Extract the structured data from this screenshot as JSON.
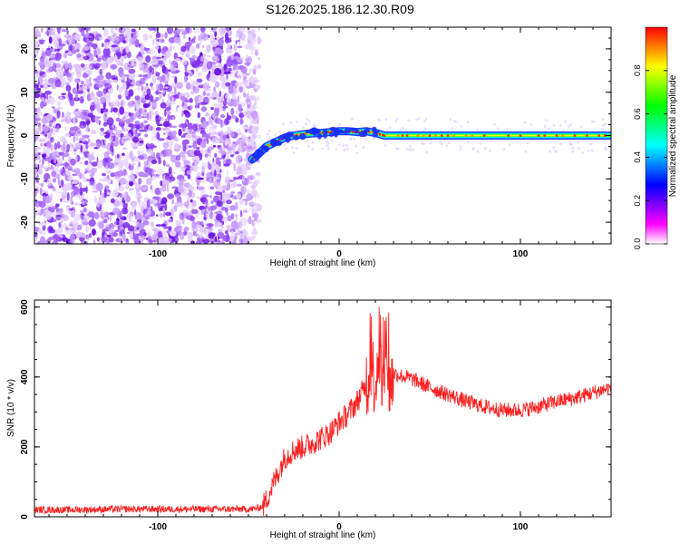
{
  "title": "S126.2025.186.12.30.R09",
  "chart_data": [
    {
      "type": "heatmap",
      "xlabel": "Height of straight line (km)",
      "ylabel": "Frequency (Hz)",
      "xlim": [
        -168,
        150
      ],
      "ylim": [
        -25,
        25
      ],
      "xticks": [
        -100,
        0,
        100
      ],
      "yticks": [
        -20,
        -10,
        0,
        10,
        20
      ],
      "colorbar": {
        "label": "Normalized spectral amplitude",
        "range": [
          0.0,
          1.0
        ],
        "ticks": [
          "0.0",
          "0.2",
          "0.4",
          "0.6",
          "0.8"
        ],
        "colormap": [
          "#ffffff",
          "#ff00ff",
          "#7f00ff",
          "#0000ff",
          "#0080ff",
          "#00ffff",
          "#00ff80",
          "#00ff00",
          "#80ff00",
          "#ffff00",
          "#ff8000",
          "#ff0000"
        ]
      },
      "noise_region_x": [
        -168,
        -48
      ],
      "signal_ridge": {
        "x": [
          -48,
          -45,
          -40,
          -35,
          -30,
          -25,
          -20,
          -15,
          -10,
          -5,
          0,
          5,
          10,
          15,
          20,
          25,
          40,
          60,
          80,
          100,
          120,
          140,
          150
        ],
        "y": [
          -5.5,
          -4.5,
          -2.5,
          -1.5,
          -0.5,
          0.0,
          0.3,
          0.5,
          0.6,
          0.8,
          1.0,
          1.0,
          0.8,
          1.0,
          0.6,
          0.0,
          0.0,
          0.0,
          0.0,
          0.0,
          0.0,
          0.0,
          0.0
        ]
      },
      "grid": false
    },
    {
      "type": "line",
      "xlabel": "Height of straight line (km)",
      "ylabel": "SNR (10 * v/v)",
      "xlim": [
        -168,
        150
      ],
      "ylim": [
        0,
        620
      ],
      "xticks": [
        -100,
        0,
        100
      ],
      "yticks": [
        0,
        200,
        400,
        600
      ],
      "series": [
        {
          "color": "#ff2020",
          "x": [
            -168,
            -150,
            -120,
            -100,
            -80,
            -60,
            -48,
            -45,
            -42,
            -40,
            -35,
            -30,
            -25,
            -20,
            -15,
            -10,
            -5,
            0,
            5,
            10,
            15,
            18,
            20,
            22,
            24,
            26,
            28,
            30,
            40,
            50,
            60,
            70,
            80,
            90,
            100,
            110,
            120,
            130,
            140,
            150
          ],
          "y": [
            20,
            20,
            22,
            22,
            22,
            22,
            22,
            25,
            30,
            50,
            110,
            170,
            190,
            200,
            210,
            225,
            240,
            270,
            295,
            330,
            380,
            430,
            380,
            490,
            350,
            400,
            380,
            410,
            395,
            370,
            350,
            330,
            315,
            305,
            305,
            315,
            330,
            340,
            355,
            370
          ]
        }
      ],
      "grid": false
    }
  ]
}
